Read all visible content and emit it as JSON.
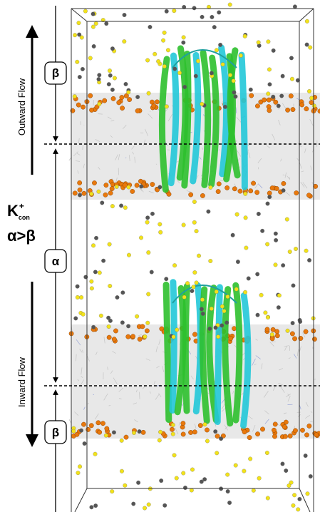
{
  "labels": {
    "beta_top": "β",
    "outward_flow": "Outward Flow",
    "k": "K",
    "k_sup": "+",
    "k_sub": "con",
    "alpha_gt_beta": "α>β",
    "alpha": "α",
    "inward_flow": "Inward Flow",
    "beta_bottom": "β"
  }
}
